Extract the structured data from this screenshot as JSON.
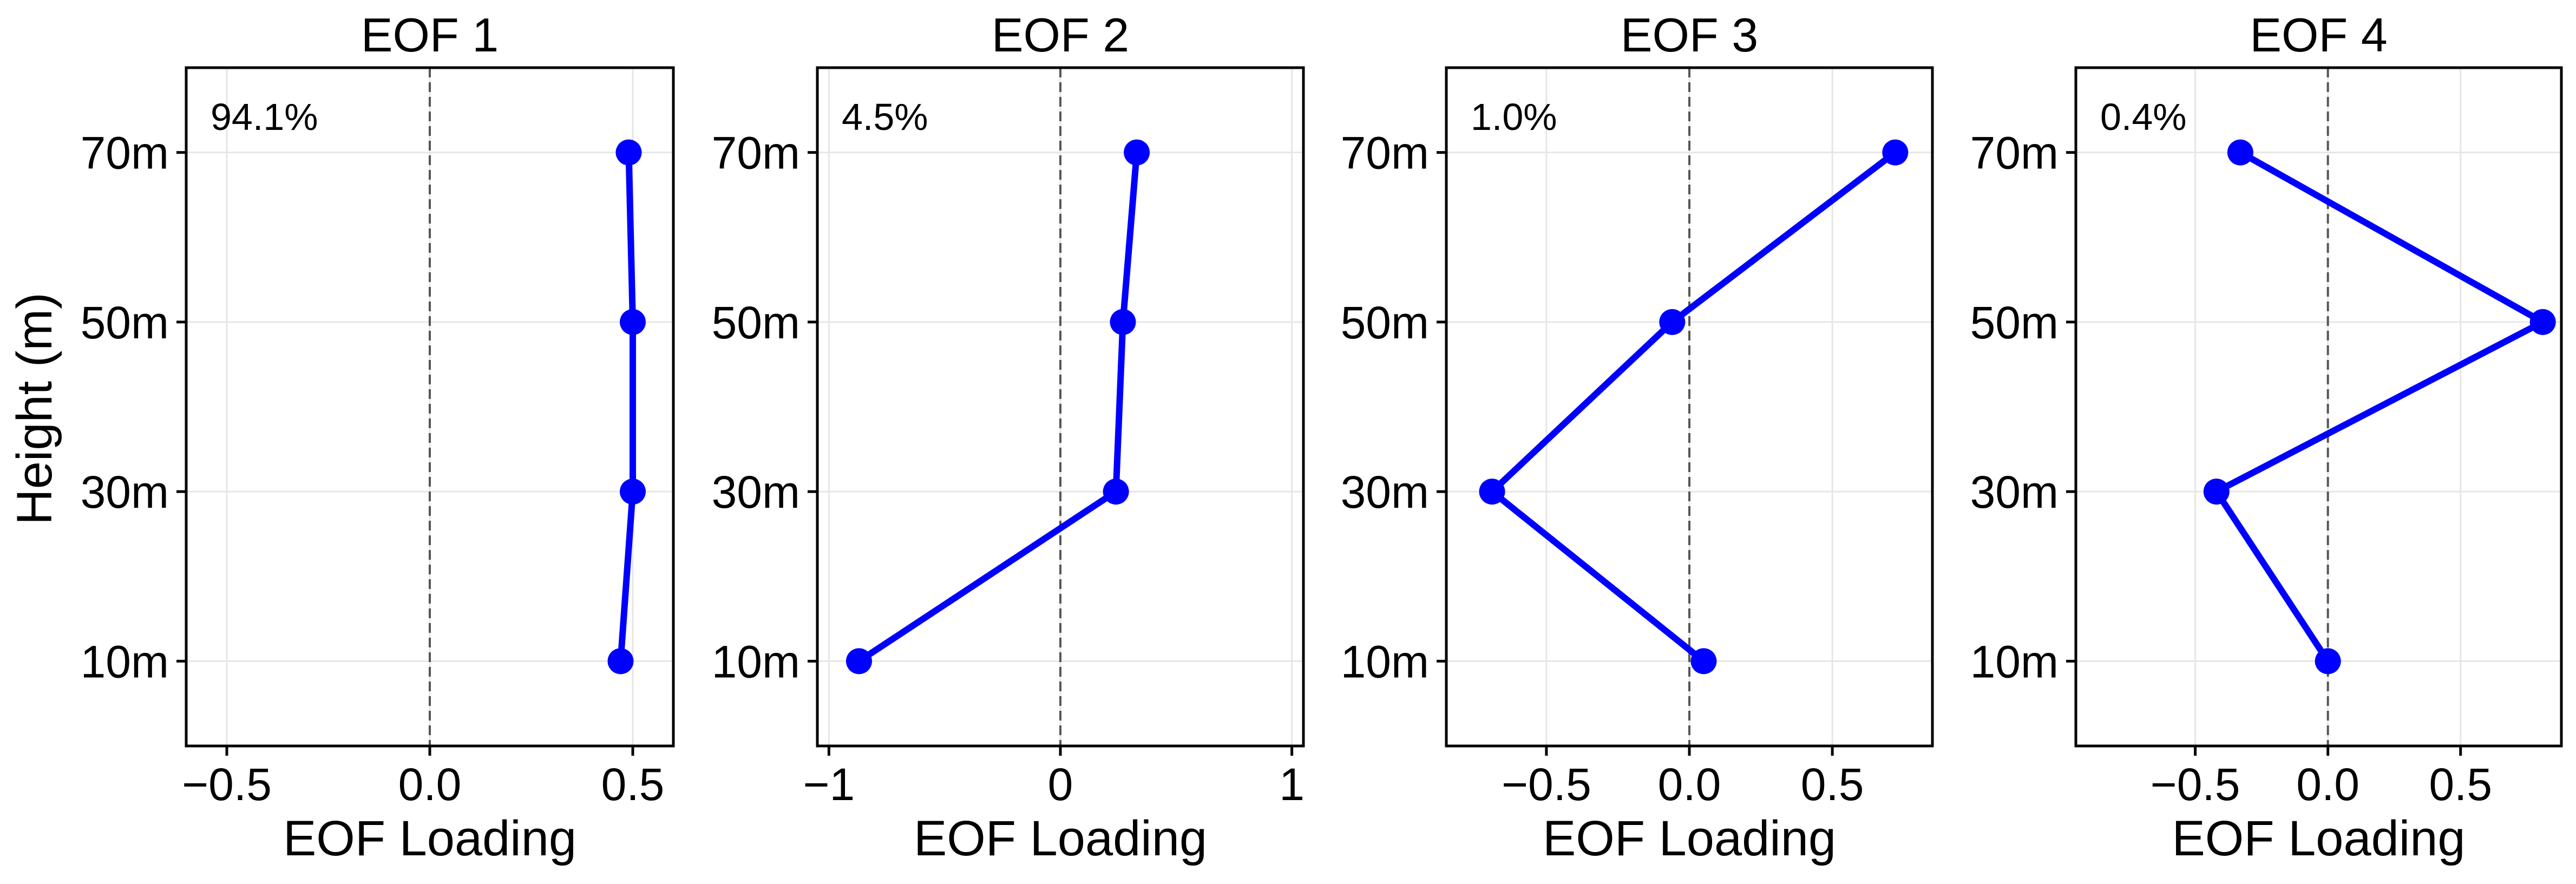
{
  "figure": {
    "ylabel": "Height (m)"
  },
  "colors": {
    "line": "#0000ff",
    "zero_line": "#555555",
    "grid": "#e6e6e6",
    "frame": "#000000"
  },
  "chart_data": [
    {
      "type": "line",
      "title": "EOF 1",
      "annotation": "94.1%",
      "xlabel": "EOF Loading",
      "ylabel": "Height (m)",
      "xlim": [
        -0.6,
        0.6
      ],
      "xticks": [
        -0.5,
        0.0,
        0.5
      ],
      "xtick_labels": [
        "−0.5",
        "0.0",
        "0.5"
      ],
      "ylim": [
        0,
        80
      ],
      "yticks": [
        10,
        30,
        50,
        70
      ],
      "ytick_labels": [
        "10m",
        "30m",
        "50m",
        "70m"
      ],
      "grid": true,
      "zero_line": true,
      "series": [
        {
          "x": [
            0.47,
            0.5,
            0.5,
            0.49
          ],
          "y": [
            10,
            30,
            50,
            70
          ]
        }
      ]
    },
    {
      "type": "line",
      "title": "EOF 2",
      "annotation": "4.5%",
      "xlabel": "EOF Loading",
      "ylabel": "",
      "xlim": [
        -1.05,
        1.05
      ],
      "xticks": [
        -1,
        0,
        1
      ],
      "xtick_labels": [
        "−1",
        "0",
        "1"
      ],
      "ylim": [
        0,
        80
      ],
      "yticks": [
        10,
        30,
        50,
        70
      ],
      "ytick_labels": [
        "10m",
        "30m",
        "50m",
        "70m"
      ],
      "grid": true,
      "zero_line": true,
      "series": [
        {
          "x": [
            -0.87,
            0.24,
            0.27,
            0.33
          ],
          "y": [
            10,
            30,
            50,
            70
          ]
        }
      ]
    },
    {
      "type": "line",
      "title": "EOF 3",
      "annotation": "1.0%",
      "xlabel": "EOF Loading",
      "ylabel": "",
      "xlim": [
        -0.85,
        0.85
      ],
      "xticks": [
        -0.5,
        0.0,
        0.5
      ],
      "xtick_labels": [
        "−0.5",
        "0.0",
        "0.5"
      ],
      "ylim": [
        0,
        80
      ],
      "yticks": [
        10,
        30,
        50,
        70
      ],
      "ytick_labels": [
        "10m",
        "30m",
        "50m",
        "70m"
      ],
      "grid": true,
      "zero_line": true,
      "series": [
        {
          "x": [
            0.05,
            -0.69,
            -0.06,
            0.72
          ],
          "y": [
            10,
            30,
            50,
            70
          ]
        }
      ]
    },
    {
      "type": "line",
      "title": "EOF 4",
      "annotation": "0.4%",
      "xlabel": "EOF Loading",
      "ylabel": "",
      "xlim": [
        -0.95,
        0.88
      ],
      "xticks": [
        -0.5,
        0.0,
        0.5
      ],
      "xtick_labels": [
        "−0.5",
        "0.0",
        "0.5"
      ],
      "ylim": [
        0,
        80
      ],
      "yticks": [
        10,
        30,
        50,
        70
      ],
      "ytick_labels": [
        "10m",
        "30m",
        "50m",
        "70m"
      ],
      "grid": true,
      "zero_line": true,
      "series": [
        {
          "x": [
            0.0,
            -0.42,
            0.81,
            -0.33
          ],
          "y": [
            10,
            30,
            50,
            70
          ]
        }
      ]
    }
  ]
}
